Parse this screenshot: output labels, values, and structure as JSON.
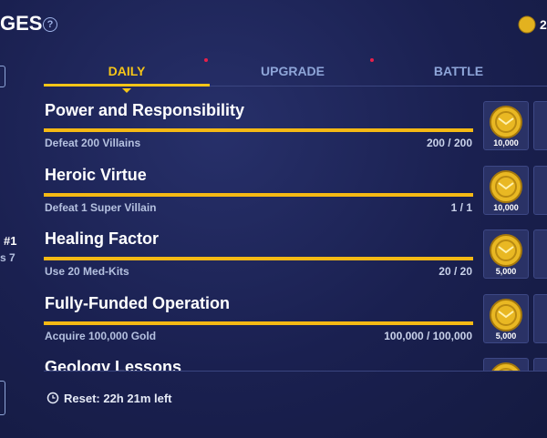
{
  "header": {
    "title": "GES",
    "help": "?",
    "currency": "2"
  },
  "side": {
    "rank": "#1",
    "sub": "s 7"
  },
  "tabs": [
    "DAILY",
    "UPGRADE",
    "BATTLE"
  ],
  "challenges": [
    {
      "title": "Power and Responsibility",
      "description": "Defeat 200 Villains",
      "progress": "200 / 200",
      "reward": "10,000"
    },
    {
      "title": "Heroic Virtue",
      "description": "Defeat 1 Super Villain",
      "progress": "1 / 1",
      "reward": "10,000"
    },
    {
      "title": "Healing Factor",
      "description": "Use 20 Med-Kits",
      "progress": "20 / 20",
      "reward": "5,000"
    },
    {
      "title": "Fully-Funded Operation",
      "description": "Acquire 100,000 Gold",
      "progress": "100,000 / 100,000",
      "reward": "5,000"
    },
    {
      "title": "Geology Lessons"
    }
  ],
  "footer": {
    "reset": "Reset: 22h 21m left"
  }
}
